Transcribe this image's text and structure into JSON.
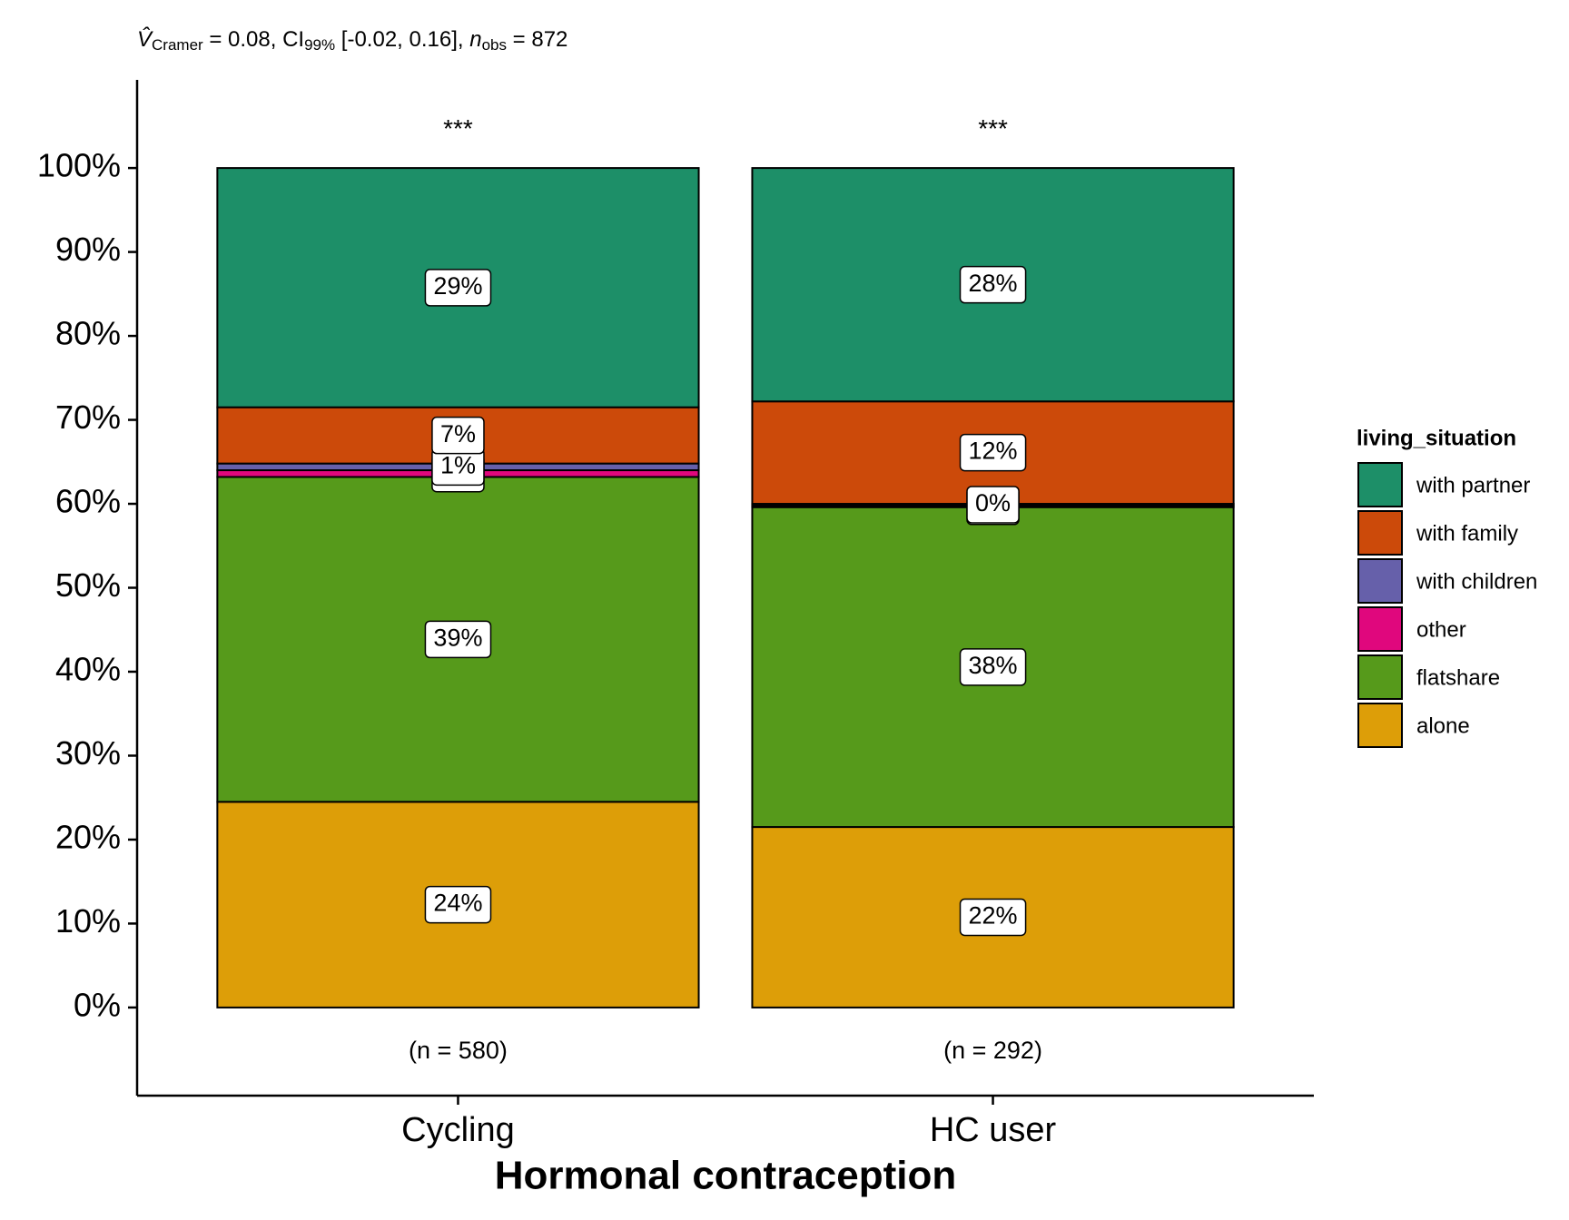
{
  "chart_data": {
    "type": "stacked_bar",
    "subtitle_parts": [
      {
        "text": "V̂",
        "format": "italic"
      },
      {
        "text": "Cramer",
        "format": "sub"
      },
      {
        "text": " = 0.08, CI",
        "format": "normal"
      },
      {
        "text": "99%",
        "format": "sub"
      },
      {
        "text": " [-0.02, 0.16], ",
        "format": "normal"
      },
      {
        "text": "n",
        "format": "italic"
      },
      {
        "text": "obs",
        "format": "sub"
      },
      {
        "text": " = 872",
        "format": "normal"
      }
    ],
    "x_label": "Hormonal contraception",
    "legend_title": "living_situation",
    "categories": [
      "Cycling",
      "HC user"
    ],
    "significance": [
      "***",
      "***"
    ],
    "count_labels": [
      "(n = 580)",
      "(n = 292)"
    ],
    "series": [
      {
        "name": "alone",
        "color": "#dd9e08",
        "values": [
          24.5,
          21.5
        ],
        "value_labels": [
          "24%",
          "22%"
        ]
      },
      {
        "name": "flatshare",
        "color": "#569a1b",
        "values": [
          38.7,
          38.1
        ],
        "value_labels": [
          "39%",
          "38%"
        ]
      },
      {
        "name": "other",
        "color": "#e0077d",
        "values": [
          0.8,
          0.2
        ],
        "value_labels": [
          "1%",
          "0%"
        ]
      },
      {
        "name": "with children",
        "color": "#6660aa",
        "values": [
          0.8,
          0.2
        ],
        "value_labels": [
          "1%",
          "0%"
        ]
      },
      {
        "name": "with family",
        "color": "#cc4a0a",
        "values": [
          6.7,
          12.2
        ],
        "value_labels": [
          "7%",
          "12%"
        ]
      },
      {
        "name": "with partner",
        "color": "#1d8f68",
        "values": [
          28.5,
          27.8
        ],
        "value_labels": [
          "29%",
          "28%"
        ]
      }
    ],
    "ylim": [
      -10.5,
      110.5
    ],
    "yticks": [
      {
        "value": 0,
        "label": "0%"
      },
      {
        "value": 10,
        "label": "10%"
      },
      {
        "value": 20,
        "label": "20%"
      },
      {
        "value": 30,
        "label": "30%"
      },
      {
        "value": 40,
        "label": "40%"
      },
      {
        "value": 50,
        "label": "50%"
      },
      {
        "value": 60,
        "label": "60%"
      },
      {
        "value": 70,
        "label": "70%"
      },
      {
        "value": 80,
        "label": "80%"
      },
      {
        "value": 90,
        "label": "90%"
      },
      {
        "value": 100,
        "label": "100%"
      }
    ]
  }
}
